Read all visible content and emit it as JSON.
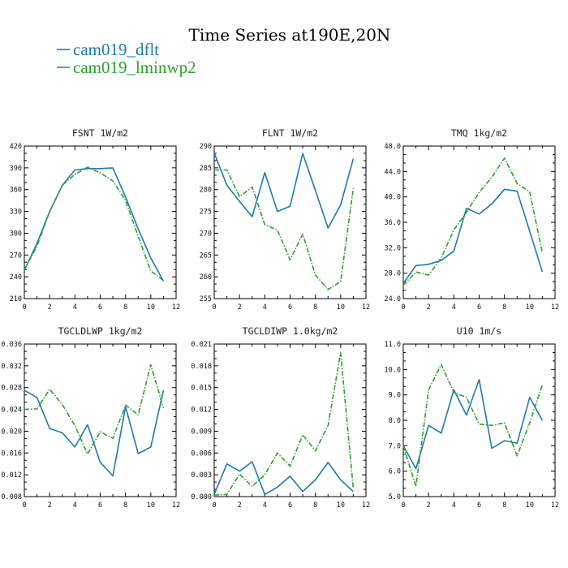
{
  "figure": {
    "title": "Time Series at190E,20N"
  },
  "legend": [
    {
      "label": "cam019_dflt",
      "color": "#1f77b4",
      "dash": "solid"
    },
    {
      "label": "cam019_lminwp2",
      "color": "#2ca02c",
      "dash": "dashdot"
    }
  ],
  "chart_data": [
    {
      "type": "line",
      "title": "FSNT   1W/m2",
      "x": [
        0,
        1,
        2,
        3,
        4,
        5,
        6,
        7,
        8,
        9,
        10,
        11
      ],
      "xlim": [
        0,
        12
      ],
      "xticks": [
        0,
        2,
        4,
        6,
        8,
        10,
        12
      ],
      "ylim": [
        210,
        420
      ],
      "yticks": [
        "210",
        "240",
        "270",
        "300",
        "330",
        "360",
        "390",
        "420"
      ],
      "series": [
        {
          "name": "cam019_dflt",
          "values": [
            249,
            286,
            330,
            366,
            387,
            389,
            389,
            390,
            350,
            306,
            266,
            234
          ]
        },
        {
          "name": "cam019_lminwp2",
          "values": [
            250,
            282,
            330,
            366,
            381,
            391,
            383,
            372,
            345,
            296,
            248,
            235
          ]
        }
      ]
    },
    {
      "type": "line",
      "title": "FLNT   1W/m2",
      "x": [
        0,
        1,
        2,
        3,
        4,
        5,
        6,
        7,
        8,
        9,
        10,
        11
      ],
      "xlim": [
        0,
        12
      ],
      "xticks": [
        0,
        2,
        4,
        6,
        8,
        10,
        12
      ],
      "ylim": [
        255,
        290
      ],
      "yticks": [
        "255",
        "260",
        "265",
        "270",
        "275",
        "280",
        "285",
        "290"
      ],
      "series": [
        {
          "name": "cam019_dflt",
          "values": [
            288.4,
            281.0,
            277.3,
            273.8,
            283.9,
            275.0,
            276.2,
            288.3,
            279.8,
            271.2,
            276.5,
            287.1
          ]
        },
        {
          "name": "cam019_lminwp2",
          "values": [
            284.5,
            284.5,
            278.4,
            280.6,
            272.0,
            270.7,
            263.9,
            269.8,
            260.4,
            257.1,
            258.9,
            280.3
          ]
        }
      ]
    },
    {
      "type": "line",
      "title": "TMQ   1kg/m2",
      "x": [
        0,
        1,
        2,
        3,
        4,
        5,
        6,
        7,
        8,
        9,
        10,
        11
      ],
      "xlim": [
        0,
        12
      ],
      "xticks": [
        0,
        2,
        4,
        6,
        8,
        10,
        12
      ],
      "ylim": [
        24.0,
        48.0
      ],
      "yticks": [
        "24.0",
        "28.0",
        "32.0",
        "36.0",
        "40.0",
        "44.0",
        "48.0"
      ],
      "series": [
        {
          "name": "cam019_dflt",
          "values": [
            26.4,
            29.2,
            29.4,
            30.0,
            31.5,
            38.2,
            37.3,
            38.9,
            41.2,
            40.9,
            34.6,
            28.2
          ]
        },
        {
          "name": "cam019_lminwp2",
          "values": [
            26.1,
            28.2,
            27.7,
            30.4,
            34.8,
            37.6,
            40.7,
            43.1,
            46.1,
            42.1,
            40.8,
            31.2
          ]
        }
      ]
    },
    {
      "type": "line",
      "title": "TGCLDLWP   1kg/m2",
      "x": [
        0,
        1,
        2,
        3,
        4,
        5,
        6,
        7,
        8,
        9,
        10,
        11
      ],
      "xlim": [
        0,
        12
      ],
      "xticks": [
        0,
        2,
        4,
        6,
        8,
        10,
        12
      ],
      "ylim": [
        0.008,
        0.036
      ],
      "yticks": [
        "0.008",
        "0.012",
        "0.016",
        "0.020",
        "0.024",
        "0.028",
        "0.032",
        "0.036"
      ],
      "series": [
        {
          "name": "cam019_dflt",
          "values": [
            0.0275,
            0.0262,
            0.0205,
            0.0197,
            0.0171,
            0.0212,
            0.0143,
            0.0118,
            0.0245,
            0.0159,
            0.0171,
            0.0275
          ]
        },
        {
          "name": "cam019_lminwp2",
          "values": [
            0.024,
            0.0241,
            0.0277,
            0.0249,
            0.021,
            0.0158,
            0.0199,
            0.0187,
            0.0248,
            0.023,
            0.0322,
            0.0243
          ]
        }
      ]
    },
    {
      "type": "line",
      "title": "TGCLDIWP   1.0kg/m2",
      "x": [
        0,
        1,
        2,
        3,
        4,
        5,
        6,
        7,
        8,
        9,
        10,
        11
      ],
      "xlim": [
        0,
        12
      ],
      "xticks": [
        0,
        2,
        4,
        6,
        8,
        10,
        12
      ],
      "ylim": [
        0.0,
        0.021
      ],
      "yticks": [
        "0.000",
        "0.003",
        "0.006",
        "0.009",
        "0.012",
        "0.015",
        "0.018",
        "0.021"
      ],
      "series": [
        {
          "name": "cam019_dflt",
          "values": [
            0.0003,
            0.0045,
            0.0035,
            0.0048,
            0.0003,
            0.0013,
            0.0028,
            0.0007,
            0.0023,
            0.0047,
            0.0023,
            0.0007
          ]
        },
        {
          "name": "cam019_lminwp2",
          "values": [
            0.0002,
            0.0003,
            0.0031,
            0.0014,
            0.003,
            0.006,
            0.0042,
            0.0085,
            0.0063,
            0.0098,
            0.0198,
            0.0011
          ]
        }
      ]
    },
    {
      "type": "line",
      "title": "U10   1m/s",
      "x": [
        0,
        1,
        2,
        3,
        4,
        5,
        6,
        7,
        8,
        9,
        10,
        11
      ],
      "xlim": [
        0,
        12
      ],
      "xticks": [
        0,
        2,
        4,
        6,
        8,
        10,
        12
      ],
      "ylim": [
        5.0,
        11.0
      ],
      "yticks": [
        "5.0",
        "6.0",
        "7.0",
        "8.0",
        "9.0",
        "10.0",
        "11.0"
      ],
      "series": [
        {
          "name": "cam019_dflt",
          "values": [
            7.0,
            6.1,
            7.8,
            7.5,
            9.2,
            8.2,
            9.6,
            6.9,
            7.2,
            7.1,
            8.9,
            8.0
          ]
        },
        {
          "name": "cam019_lminwp2",
          "values": [
            7.0,
            5.4,
            9.2,
            10.2,
            9.1,
            8.9,
            7.85,
            7.8,
            7.9,
            6.6,
            7.9,
            9.4
          ]
        }
      ]
    }
  ]
}
